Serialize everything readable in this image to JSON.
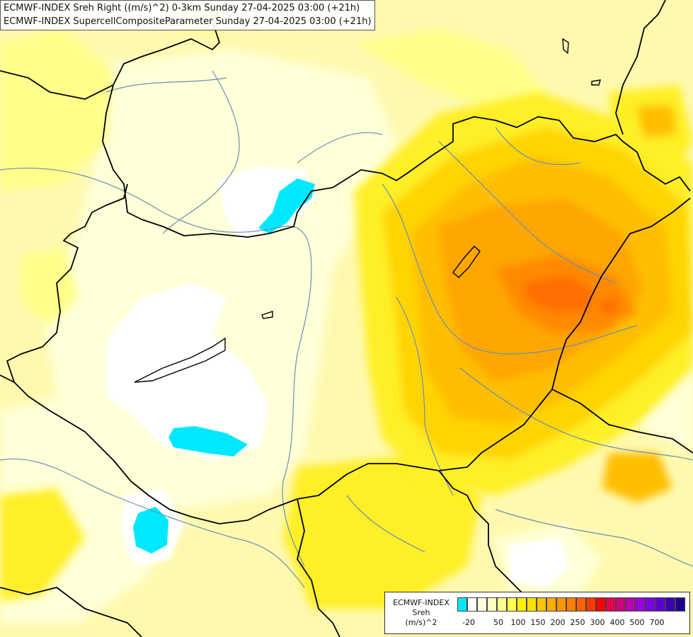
{
  "titles": {
    "line1": "ECMWF-INDEX Sreh Right ((m/s)^2) 0-3km Sunday 27-04-2025 03:00 (+21h)",
    "line2": "ECMWF-INDEX SupercellCompositeParameter Sunday 27-04-2025 03:00 (+21h)"
  },
  "legend": {
    "model": "ECMWF-INDEX",
    "variable": "Sreh",
    "unit": "(m/s)^2",
    "colors": [
      "#00e5ff",
      "#ffffff",
      "#ffffe0",
      "#ffffc0",
      "#ffff90",
      "#ffff50",
      "#ffef00",
      "#ffe000",
      "#ffc400",
      "#ffae00",
      "#ff9600",
      "#ff7e00",
      "#ff6200",
      "#ff3a00",
      "#ff0000",
      "#e6004e",
      "#cc0080",
      "#b800b0",
      "#9900e0",
      "#7a00e6",
      "#5a00d0",
      "#3c00b0",
      "#1e0090"
    ],
    "ticks": [
      "-20",
      "50",
      "100",
      "150",
      "200",
      "250",
      "300",
      "400",
      "500",
      "700"
    ]
  },
  "map_colors": {
    "base": "#fff9b0",
    "pale": "#ffffd8",
    "light": "#ffff8a",
    "yellow": "#ffef28",
    "gold": "#ffd400",
    "amber": "#ffbe00",
    "orange": "#ffa600",
    "deep_orange": "#ff8a00",
    "red_orange": "#ff6e00",
    "white": "#ffffff",
    "cyan": "#00e8ff",
    "border": "#000000",
    "river": "#6a8fb0"
  }
}
